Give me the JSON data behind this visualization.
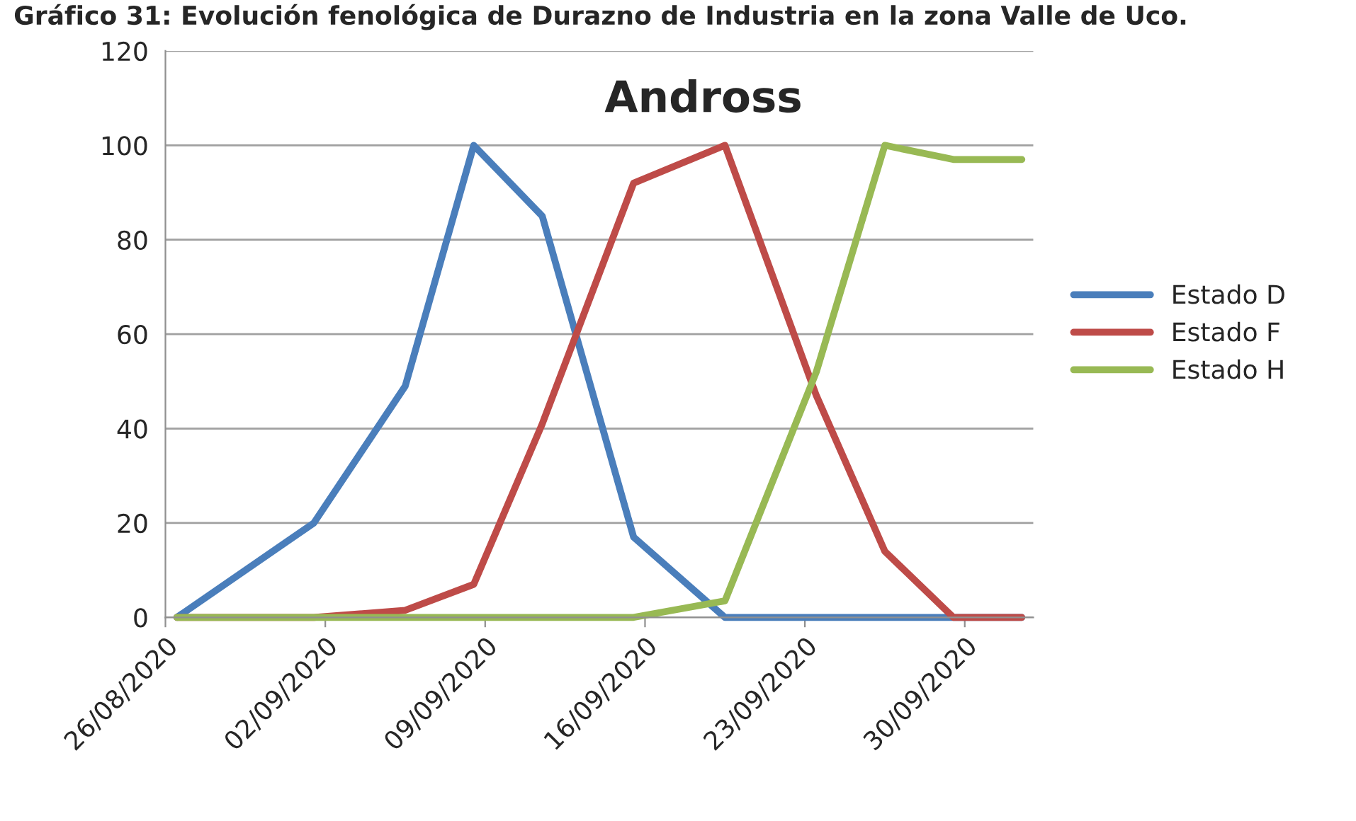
{
  "chart_data": {
    "type": "line",
    "title": "Andross",
    "annotations": [
      "Gráfico 31: Evolución fenológica de Durazno de Industria en la zona Valle de Uco."
    ],
    "x": [
      "2020-08-26T12:00",
      "2020-09-01T12:00",
      "2020-09-05T12:00",
      "2020-09-08T12:00",
      "2020-09-11T12:00",
      "2020-09-15T12:00",
      "2020-09-19T12:00",
      "2020-09-23T12:00",
      "2020-09-26T12:00",
      "2020-09-29T12:00",
      "2020-10-02T12:00"
    ],
    "series": [
      {
        "name": "Estado D",
        "color": "#4a7ebb",
        "values": [
          0,
          20,
          49,
          100,
          85,
          17,
          0,
          0,
          0,
          0,
          0
        ]
      },
      {
        "name": "Estado F",
        "color": "#be4b48",
        "values": [
          0,
          0,
          1.5,
          7,
          41,
          92,
          100,
          47,
          14,
          0,
          0
        ]
      },
      {
        "name": "Estado H",
        "color": "#98b954",
        "values": [
          0,
          0,
          0,
          0,
          0,
          0,
          3.5,
          52,
          100,
          97,
          97
        ]
      }
    ],
    "xlim": [
      "2020-08-26",
      "2020-10-03"
    ],
    "xticks": [
      {
        "value": "2020-08-26",
        "label": "26/08/2020"
      },
      {
        "value": "2020-09-02",
        "label": "02/09/2020"
      },
      {
        "value": "2020-09-09",
        "label": "09/09/2020"
      },
      {
        "value": "2020-09-16",
        "label": "16/09/2020"
      },
      {
        "value": "2020-09-23",
        "label": "23/09/2020"
      },
      {
        "value": "2020-09-30",
        "label": "30/09/2020"
      }
    ],
    "ylim": [
      0,
      120
    ],
    "yticks": [
      0,
      20,
      40,
      60,
      80,
      100,
      120
    ],
    "grid": "y",
    "legend": "right",
    "marker": "none",
    "line_style": "solid"
  }
}
